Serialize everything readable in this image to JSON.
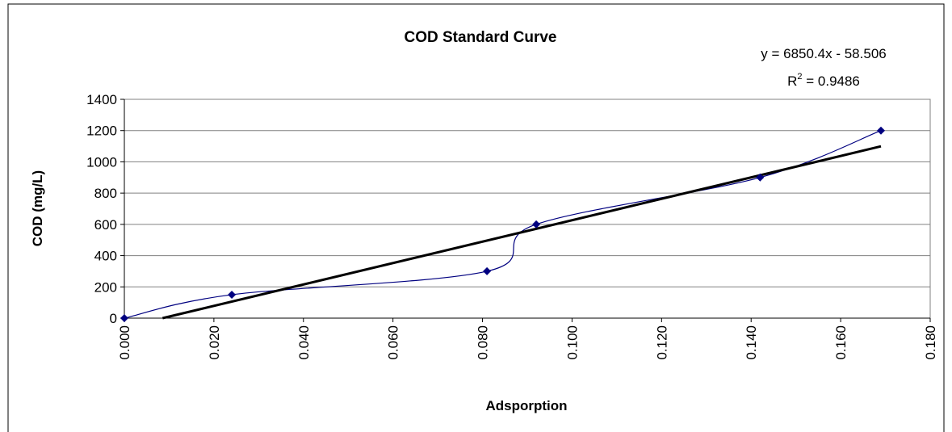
{
  "chart_data": {
    "type": "scatter",
    "title": "COD Standard Curve",
    "x_label": "Adsporption",
    "y_label": "COD (mg/L)",
    "x": [
      0.0,
      0.024,
      0.081,
      0.092,
      0.142,
      0.169
    ],
    "values": [
      0,
      150,
      300,
      600,
      900,
      1200
    ],
    "color": "#000080",
    "smooth_line": true,
    "trendline": {
      "x": [
        0.00854,
        0.169
      ],
      "values": [
        0,
        1099.2
      ],
      "color": "#000000",
      "equation": "y = 6850.4x - 58.506",
      "r_squared_label": [
        "R",
        "2",
        " = 0.9486"
      ]
    },
    "xlim": [
      0,
      0.18
    ],
    "xticks": [
      {
        "value": 0,
        "label": "0.000"
      },
      {
        "value": 0.02,
        "label": "0.020"
      },
      {
        "value": 0.04,
        "label": "0.040"
      },
      {
        "value": 0.06,
        "label": "0.060"
      },
      {
        "value": 0.08,
        "label": "0.080"
      },
      {
        "value": 0.1,
        "label": "0.100"
      },
      {
        "value": 0.12,
        "label": "0.120"
      },
      {
        "value": 0.14,
        "label": "0.140"
      },
      {
        "value": 0.16,
        "label": "0.160"
      },
      {
        "value": 0.18,
        "label": "0.180"
      }
    ],
    "ylim": [
      0,
      1400
    ],
    "yticks": [
      0,
      200,
      400,
      600,
      800,
      1000,
      1200,
      1400
    ],
    "grid": true
  }
}
